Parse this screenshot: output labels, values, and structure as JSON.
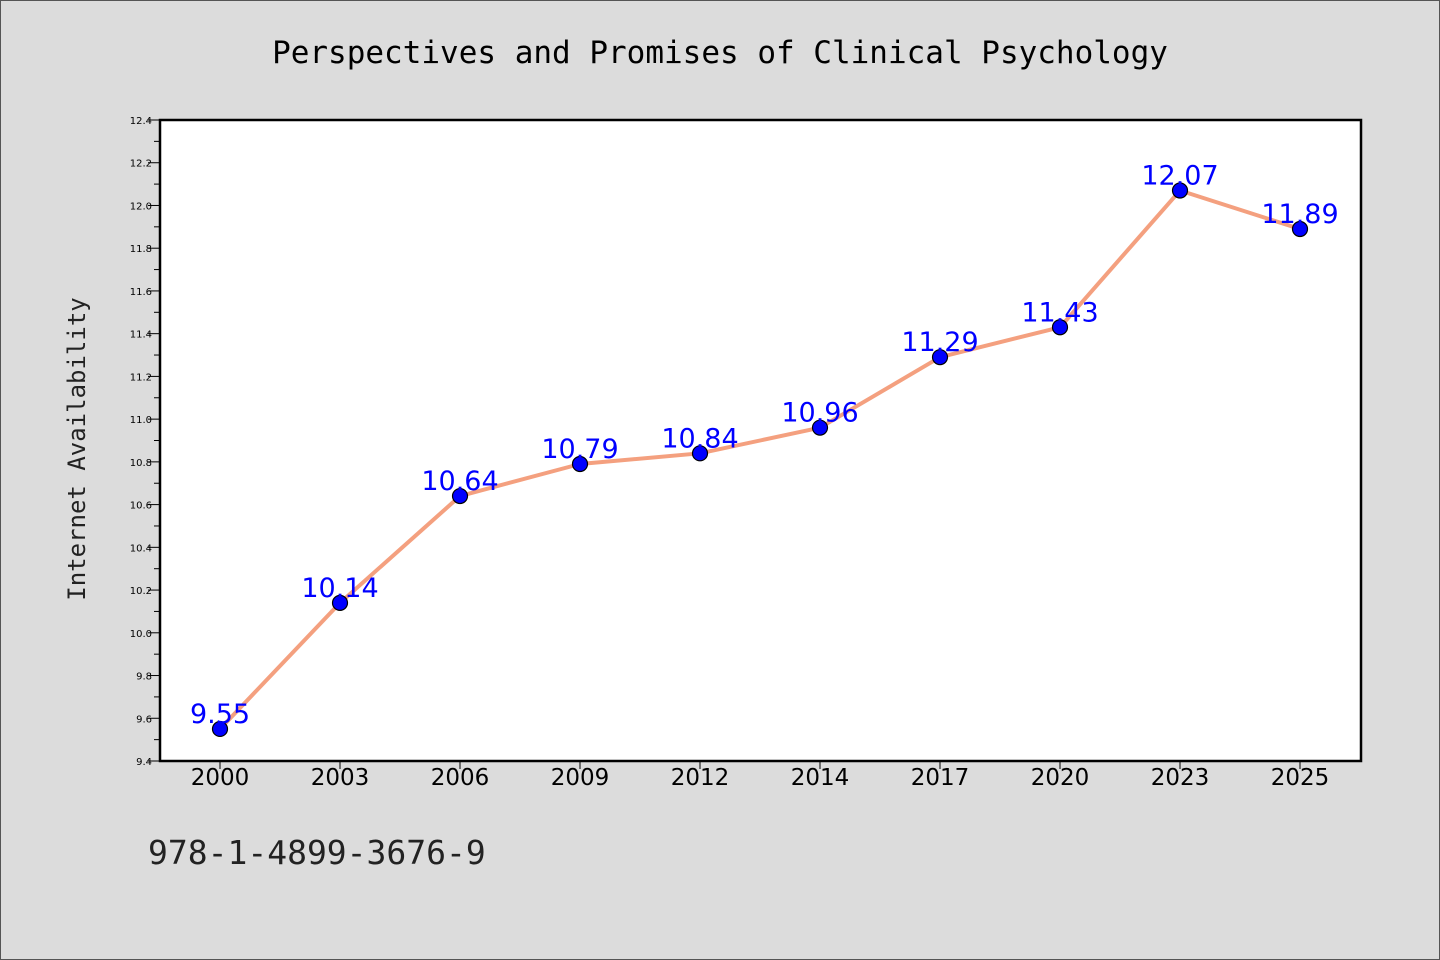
{
  "chart_data": {
    "type": "line",
    "title": "Perspectives and Promises of Clinical Psychology",
    "xlabel": "",
    "ylabel": "Internet Availability",
    "categories": [
      "2000",
      "2003",
      "2006",
      "2009",
      "2012",
      "2014",
      "2017",
      "2020",
      "2023",
      "2025"
    ],
    "series": [
      {
        "values": [
          9.55,
          10.14,
          10.64,
          10.79,
          10.84,
          10.96,
          11.29,
          11.43,
          12.07,
          11.89
        ],
        "labels": [
          "9.55",
          "10.14",
          "10.64",
          "10.79",
          "10.84",
          "10.96",
          "11.29",
          "11.43",
          "12.07",
          "11.89"
        ]
      }
    ],
    "ylim": [
      9.4,
      12.4
    ],
    "yticks": [
      "9.4",
      "9.6",
      "9.8",
      "10.0",
      "10.2",
      "10.4",
      "10.6",
      "10.8",
      "11.0",
      "11.2",
      "11.4",
      "11.6",
      "11.8",
      "12.0",
      "12.2",
      "12.4"
    ],
    "grid": false,
    "colors": {
      "line": "#f4a07f",
      "marker": "#0000ff",
      "marker_edge": "#000000",
      "data_label": "#0000ff",
      "background": "#dcdcdc",
      "plot_background": "#ffffff"
    }
  },
  "footer": {
    "text": "978-1-4899-3676-9"
  }
}
